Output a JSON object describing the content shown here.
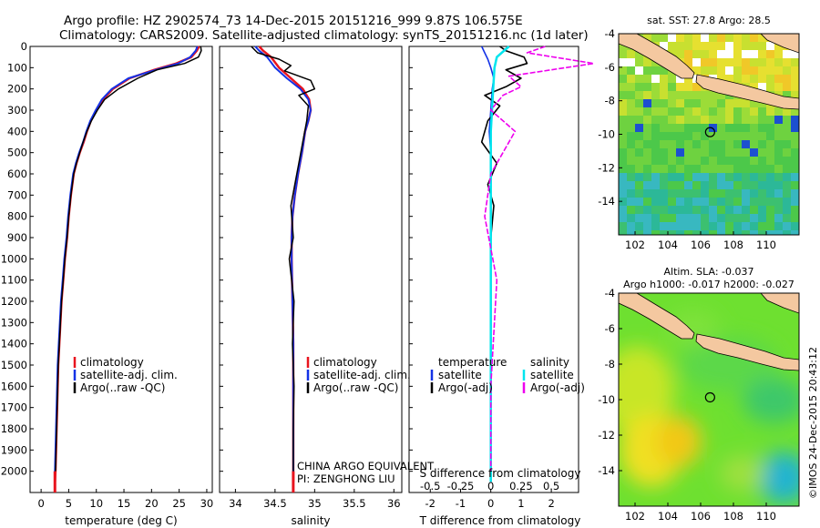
{
  "header": {
    "title_line1": "Argo profile: HZ 2902574_73 14-Dec-2015 20151216_999 9.87S 106.575E",
    "title_line2": "Climatology: CARS2009. Satellite-adjusted climatology: synTS_20151216.nc (1d later)"
  },
  "credit": "©IMOS 24-Dec-2015 20:43:12",
  "colors": {
    "climatology": "#e8141e",
    "satellite": "#1432e6",
    "argo": "#000000",
    "salinity_satellite": "#00e5ee",
    "salinity_argo": "#ee00ee",
    "land": "#f4c8a0"
  },
  "chart_data": [
    {
      "type": "line",
      "id": "temperature",
      "xlabel": "temperature (deg C)",
      "xlim": [
        -2,
        31
      ],
      "ylim": [
        2100,
        0
      ],
      "xticks": [
        0,
        5,
        10,
        15,
        20,
        25,
        30
      ],
      "yticks": [
        0,
        100,
        200,
        300,
        400,
        500,
        600,
        700,
        800,
        900,
        1000,
        1100,
        1200,
        1300,
        1400,
        1500,
        1600,
        1700,
        1800,
        1900,
        2000
      ],
      "legend": [
        "climatology",
        "satellite-adj. clim.",
        "Argo(..raw -QC)"
      ],
      "series": [
        {
          "name": "climatology",
          "x": [
            28.6,
            28.2,
            27.2,
            24.5,
            20.5,
            16.0,
            13.0,
            11.2,
            10.0,
            9.0,
            8.3,
            7.7,
            7.0,
            6.4,
            5.9,
            5.4,
            5.0,
            4.7,
            4.3,
            4.0,
            3.7,
            3.5,
            3.3,
            3.1,
            3.0,
            2.9,
            2.8,
            2.7,
            2.6,
            2.5
          ],
          "y": [
            0,
            20,
            50,
            80,
            110,
            150,
            200,
            250,
            300,
            350,
            400,
            450,
            500,
            550,
            600,
            700,
            800,
            900,
            1000,
            1100,
            1200,
            1300,
            1400,
            1500,
            1600,
            1700,
            1800,
            1900,
            2000,
            2050
          ]
        },
        {
          "name": "satellite-adj. clim.",
          "x": [
            28.3,
            28.0,
            27.0,
            24.8,
            20.8,
            15.8,
            12.8,
            11.0,
            9.9,
            8.9,
            8.2,
            7.6,
            6.9,
            6.3,
            5.8,
            5.3,
            4.9,
            4.6,
            4.2,
            3.9,
            3.6,
            3.4,
            3.2,
            3.0,
            2.9,
            2.8,
            2.7,
            2.6,
            2.5,
            2.5
          ],
          "y": [
            0,
            20,
            50,
            80,
            110,
            150,
            200,
            250,
            300,
            350,
            400,
            450,
            500,
            550,
            600,
            700,
            800,
            900,
            1000,
            1100,
            1200,
            1300,
            1400,
            1500,
            1600,
            1700,
            1800,
            1900,
            2000,
            2050
          ]
        },
        {
          "name": "Argo(..raw -QC)",
          "x": [
            28.9,
            29.0,
            28.5,
            26.0,
            21.0,
            17.5,
            14.0,
            11.5,
            10.2,
            9.1,
            8.3,
            7.6,
            7.0,
            6.4,
            5.9,
            5.4,
            5.0,
            4.7,
            4.3,
            4.0,
            3.7,
            3.5,
            3.3,
            3.1,
            3.0,
            2.9,
            2.8,
            2.7,
            2.6
          ],
          "y": [
            0,
            20,
            50,
            80,
            110,
            150,
            200,
            250,
            300,
            350,
            400,
            450,
            500,
            550,
            600,
            700,
            800,
            900,
            1000,
            1100,
            1200,
            1300,
            1400,
            1500,
            1600,
            1700,
            1800,
            1900,
            2000
          ]
        }
      ]
    },
    {
      "type": "line",
      "id": "salinity",
      "xlabel": "salinity",
      "xlim": [
        33.8,
        36.1
      ],
      "ylim": [
        2100,
        0
      ],
      "xticks": [
        34,
        34.5,
        35,
        35.5,
        36
      ],
      "legend": [
        "climatology",
        "satellite-adj. clim.",
        "Argo(..raw -QC)"
      ],
      "annotation_line1": "CHINA ARGO EQUIVALENT",
      "annotation_line2": "PI: ZENGHONG LIU",
      "series": [
        {
          "name": "climatology",
          "x": [
            34.3,
            34.35,
            34.45,
            34.55,
            34.7,
            34.85,
            34.93,
            34.95,
            34.92,
            34.88,
            34.84,
            34.79,
            34.75,
            34.72,
            34.71,
            34.71,
            34.72,
            34.73,
            34.73,
            34.73,
            34.73
          ],
          "y": [
            0,
            20,
            50,
            100,
            150,
            200,
            250,
            300,
            350,
            400,
            500,
            600,
            700,
            800,
            900,
            1000,
            1200,
            1400,
            1600,
            1800,
            2050
          ]
        },
        {
          "name": "satellite-adj. clim.",
          "x": [
            34.25,
            34.3,
            34.4,
            34.5,
            34.65,
            34.82,
            34.92,
            34.95,
            34.92,
            34.88,
            34.84,
            34.79,
            34.75,
            34.72,
            34.71,
            34.71,
            34.72,
            34.73,
            34.73,
            34.73,
            34.73
          ],
          "y": [
            0,
            20,
            50,
            100,
            150,
            200,
            250,
            300,
            350,
            400,
            500,
            600,
            700,
            800,
            900,
            1000,
            1200,
            1400,
            1600,
            1800,
            2050
          ]
        },
        {
          "name": "Argo(..raw -QC)",
          "x": [
            34.2,
            34.28,
            34.55,
            34.7,
            34.62,
            34.95,
            35.0,
            34.8,
            34.92,
            34.9,
            34.85,
            34.8,
            34.75,
            34.7,
            34.73,
            34.68,
            34.74,
            34.72,
            34.74,
            34.73,
            34.73
          ],
          "y": [
            0,
            30,
            60,
            90,
            115,
            160,
            200,
            230,
            280,
            350,
            450,
            550,
            650,
            750,
            900,
            1000,
            1200,
            1400,
            1600,
            1800,
            2000
          ]
        }
      ]
    },
    {
      "type": "line",
      "id": "difference",
      "xlabel": "T difference from climatology",
      "xlabel_top": "S difference from climatology",
      "xlim": [
        -2.7,
        2.9
      ],
      "ylim": [
        2100,
        0
      ],
      "xticks": [
        -2,
        -1,
        0,
        1,
        2
      ],
      "xticks_top": [
        -0.5,
        -0.25,
        0,
        0.25,
        0.5
      ],
      "legend_heading_temperature": "temperature",
      "legend_heading_salinity": "salinity",
      "legend_items": [
        "satellite",
        "Argo(-adj)",
        "satellite",
        "Argo(-adj)"
      ],
      "series": [
        {
          "name": "satellite",
          "x": [
            -0.3,
            -0.2,
            -0.1,
            0.0,
            0.1,
            0.05,
            0.0,
            -0.05,
            0.0,
            0.0,
            0.0,
            0.0,
            0.0,
            0.0,
            0.0,
            0.0
          ],
          "y": [
            0,
            30,
            60,
            100,
            150,
            200,
            300,
            400,
            500,
            600,
            800,
            1000,
            1200,
            1500,
            1800,
            2050
          ]
        },
        {
          "name": "Argo(-adj)",
          "x": [
            0.3,
            0.5,
            1.1,
            1.2,
            0.5,
            1.0,
            0.5,
            -0.2,
            0.3,
            -0.1,
            -0.3,
            0.2,
            -0.1,
            0.1,
            0.0,
            0.0,
            0.0,
            0.0,
            0.0
          ],
          "y": [
            0,
            20,
            50,
            80,
            110,
            150,
            190,
            230,
            280,
            350,
            450,
            550,
            650,
            750,
            900,
            1100,
            1400,
            1700,
            2000
          ]
        },
        {
          "name": "satellite",
          "x": [
            0.15,
            0.05,
            0.03,
            0.02,
            0.0,
            0.0,
            0.0,
            0.0
          ],
          "y": [
            0,
            50,
            100,
            200,
            400,
            800,
            1400,
            2050
          ]
        },
        {
          "name": "Argo(-adj)",
          "x": [
            0.45,
            0.3,
            0.85,
            0.5,
            0.15,
            0.25,
            0.1,
            0.0,
            0.2,
            0.1,
            0.0,
            -0.05,
            0.05,
            0.0,
            0.0
          ],
          "y": [
            0,
            30,
            80,
            110,
            140,
            190,
            230,
            300,
            400,
            500,
            600,
            800,
            1100,
            1600,
            2000
          ]
        }
      ]
    },
    {
      "type": "heatmap",
      "id": "sst_map",
      "title": "sat. SST: 27.8  Argo: 28.5",
      "xlim": [
        101,
        112
      ],
      "ylim": [
        -16,
        -4
      ],
      "xticks": [
        102,
        104,
        106,
        108,
        110
      ],
      "yticks": [
        -4,
        -6,
        -8,
        -10,
        -12,
        -14
      ],
      "float_position": [
        106.575,
        -9.87
      ]
    },
    {
      "type": "heatmap",
      "id": "sla_map",
      "title_line1": "Altim. SLA: -0.037",
      "title_line2": "Argo h1000: -0.017  h2000: -0.027",
      "xlim": [
        101,
        112
      ],
      "ylim": [
        -16,
        -4
      ],
      "xticks": [
        102,
        104,
        106,
        108,
        110
      ],
      "yticks": [
        -4,
        -6,
        -8,
        -10,
        -12,
        -14
      ],
      "float_position": [
        106.575,
        -9.87
      ]
    }
  ]
}
